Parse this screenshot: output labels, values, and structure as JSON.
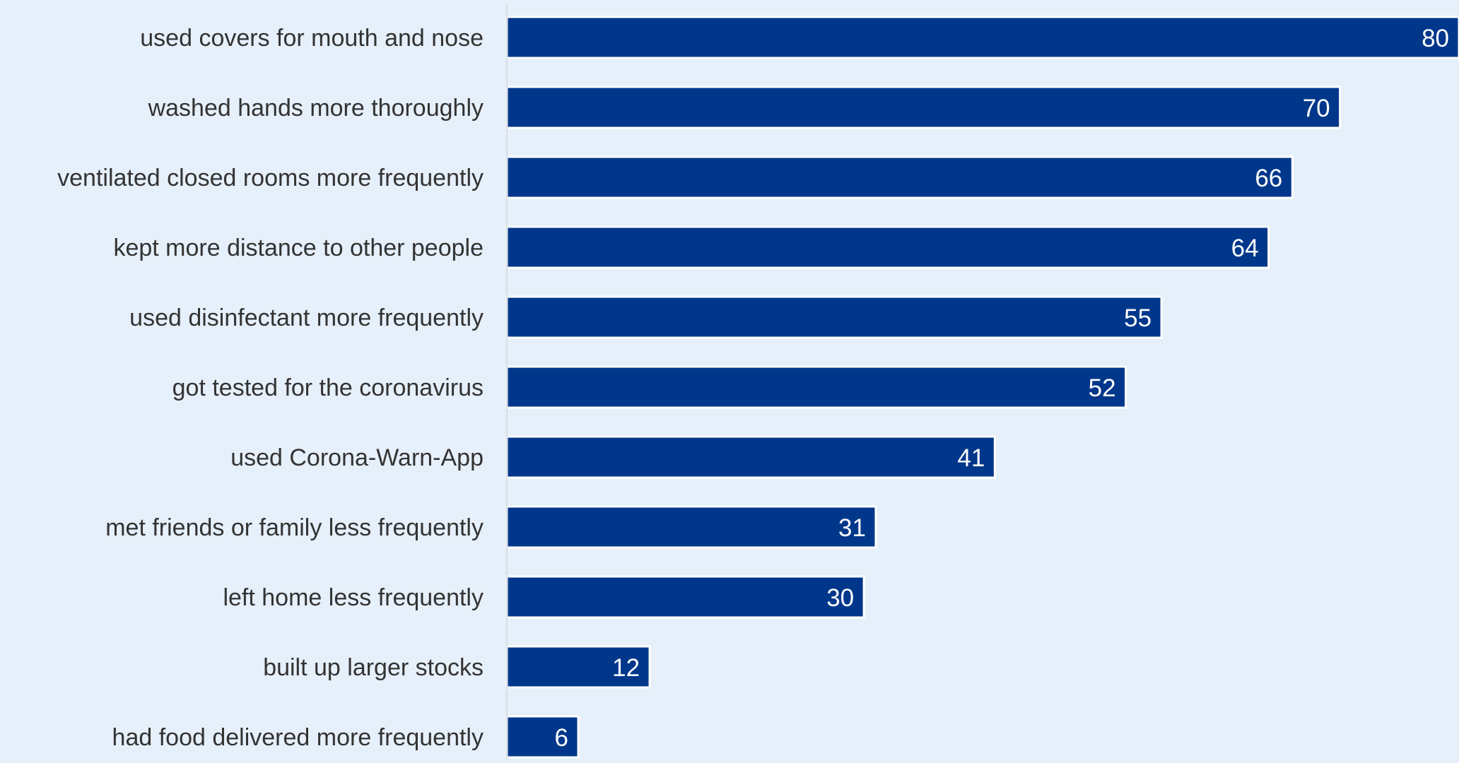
{
  "chart_data": {
    "type": "bar",
    "orientation": "horizontal",
    "categories": [
      "used covers for mouth and nose",
      "washed hands more thoroughly",
      "ventilated closed rooms more frequently",
      "kept more distance to other people",
      "used disinfectant more frequently",
      "got tested for the coronavirus",
      "used Corona-Warn-App",
      "met friends or family less frequently",
      "left home less frequently",
      "built up larger stocks",
      "had food delivered more frequently"
    ],
    "values": [
      80,
      70,
      66,
      64,
      55,
      52,
      41,
      31,
      30,
      12,
      6
    ],
    "data_labels": [
      "80",
      "70",
      "66",
      "64",
      "55",
      "52",
      "41",
      "31",
      "30",
      "12",
      "6"
    ],
    "xlim": [
      0,
      80
    ],
    "grid": false,
    "legend": "none",
    "title": "",
    "xlabel": "",
    "ylabel": "",
    "colors": {
      "bar": "#00378b",
      "bar_outline": "#ffffff",
      "bar_label": "#ffffff",
      "category_label": "#333333",
      "axis_line": "#d9dde3",
      "background": "#e6f0fb"
    }
  }
}
